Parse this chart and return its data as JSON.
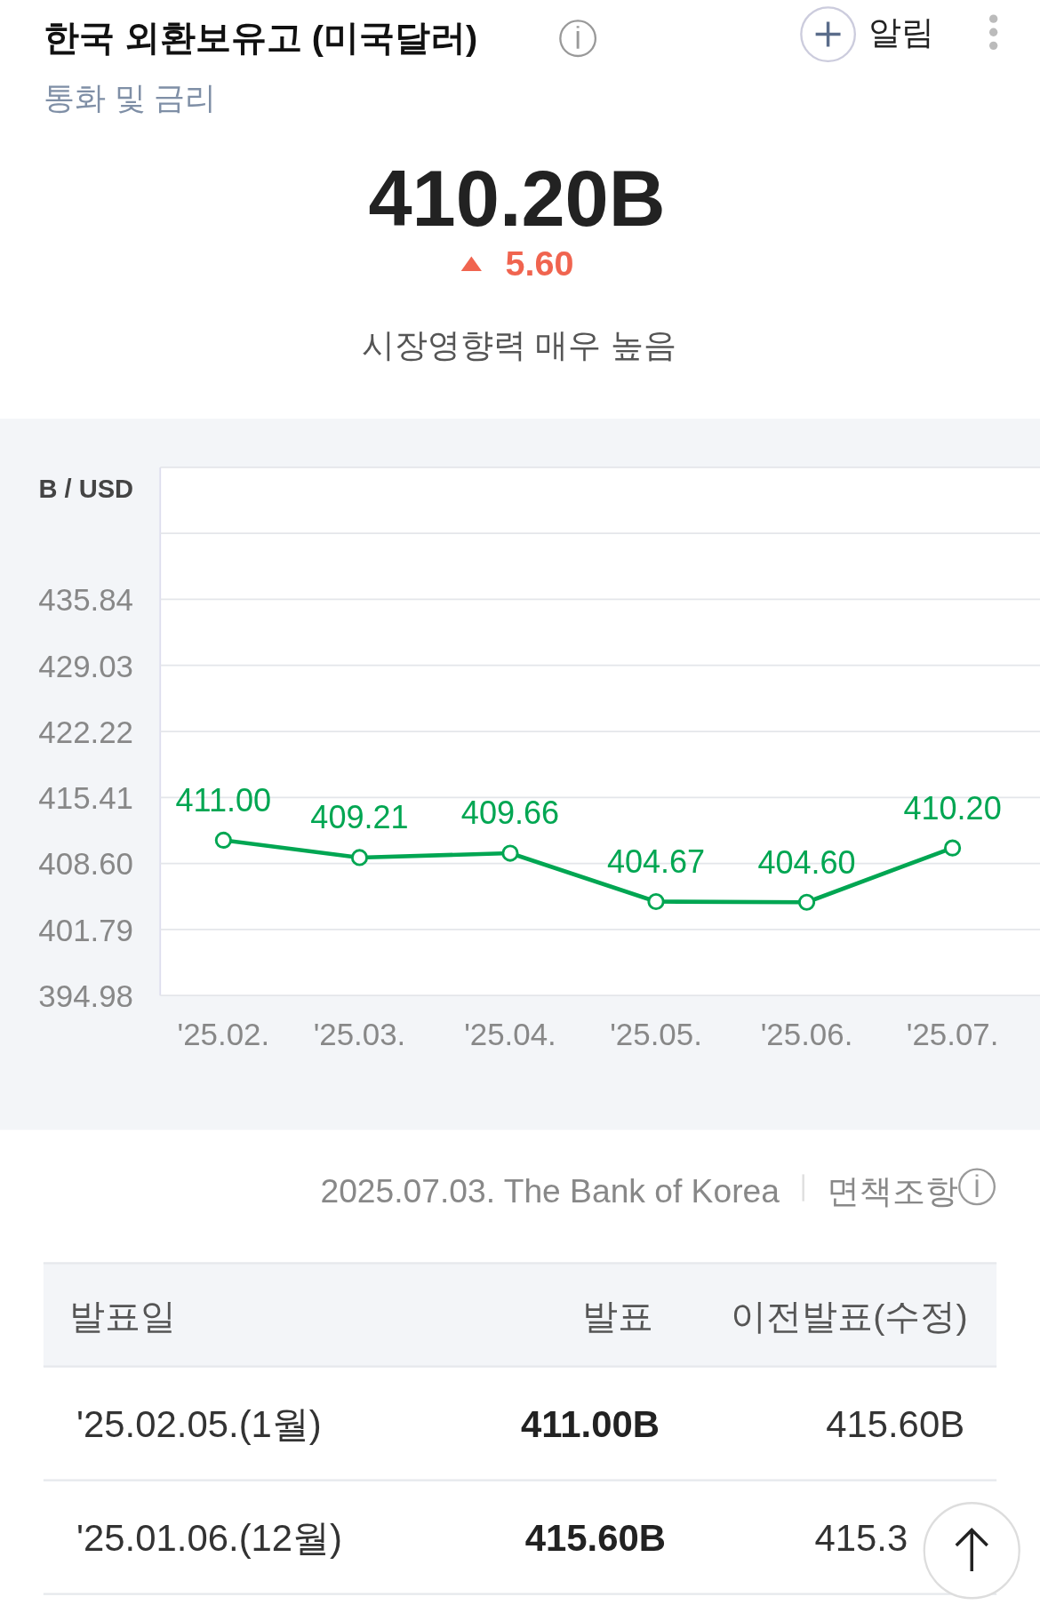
{
  "chart_data": {
    "type": "line",
    "title": "한국 외환보유고 (미국달러)",
    "subtitle": "통화 및 금리",
    "ylabel": "B / USD",
    "x": [
      "2025-02",
      "2025-03",
      "2025-04",
      "2025-05",
      "2025-06",
      "2025-07"
    ],
    "series": [
      {
        "color": "#00a652",
        "values": [
          411.0,
          409.21,
          409.66,
          404.67,
          404.6,
          410.2
        ],
        "value_labels": [
          "411.00",
          "409.21",
          "409.66",
          "404.67",
          "404.60",
          "410.20"
        ]
      }
    ],
    "xlim": [
      "2025-01-19",
      "2025-07-19"
    ],
    "xticks": [
      {
        "value": "2025-02",
        "label": "'25.02."
      },
      {
        "value": "2025-03",
        "label": "'25.03."
      },
      {
        "value": "2025-04",
        "label": "'25.04."
      },
      {
        "value": "2025-05",
        "label": "'25.05."
      },
      {
        "value": "2025-06",
        "label": "'25.06."
      },
      {
        "value": "2025-07",
        "label": "'25.07."
      }
    ],
    "ylim": [
      394.98,
      449.46
    ],
    "yticks": [
      394.98,
      401.79,
      {
        "value": 408.6,
        "label": "408.60"
      },
      415.41,
      422.22,
      429.03,
      435.84,
      {
        "value": 442.65,
        "label": null
      },
      {
        "value": 449.46,
        "label": null
      }
    ],
    "grid": "y",
    "marker": "circle",
    "line_style": "solid",
    "annotations": [
      "410.20B",
      "5.60",
      "시장영향력 매우 높음",
      "알림",
      "2025.07.03. The Bank of Korea",
      "면책조항",
      "발표일",
      "발표",
      "이전발표(수정)",
      "'25.02.05.(1월)",
      "411.00B",
      "415.60B",
      "'25.01.06.(12월)",
      "415.60B",
      "415.3"
    ]
  }
}
